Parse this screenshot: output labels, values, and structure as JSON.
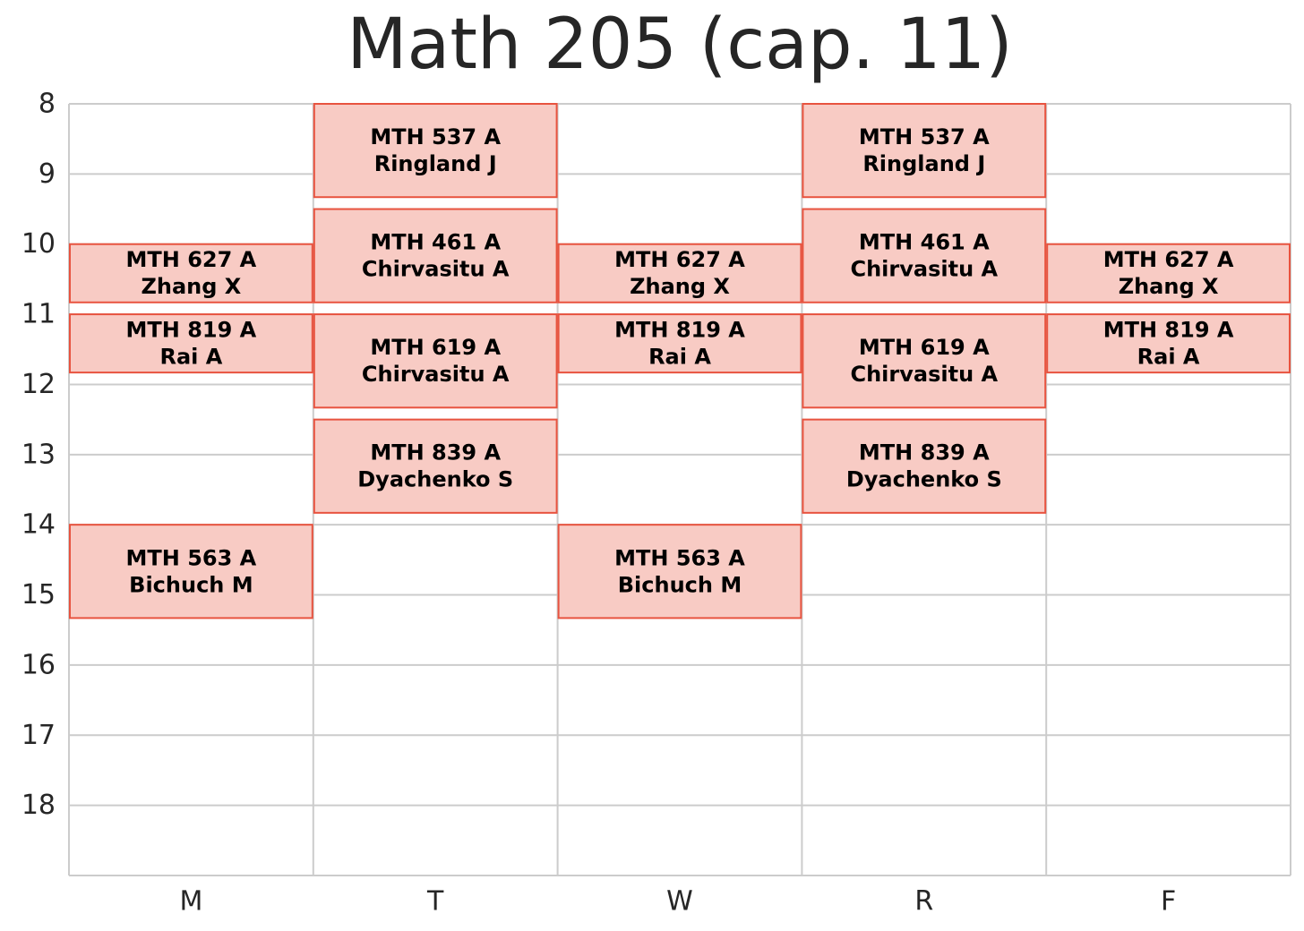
{
  "chart_data": {
    "type": "schedule",
    "title": "Math 205 (cap. 11)",
    "days": [
      "M",
      "T",
      "W",
      "R",
      "F"
    ],
    "hour_ticks": [
      "8",
      "9",
      "10",
      "11",
      "12",
      "13",
      "14",
      "15",
      "16",
      "17",
      "18"
    ],
    "ylim": [
      8,
      19
    ],
    "grid": true,
    "colors": {
      "block_fill": "#f8cbc4",
      "block_stroke": "#e8533f",
      "grid": "#cccccc"
    },
    "events": [
      {
        "day": "T",
        "start": 8.0,
        "end": 9.33,
        "course": "MTH 537 A",
        "instructor": "Ringland J"
      },
      {
        "day": "R",
        "start": 8.0,
        "end": 9.33,
        "course": "MTH 537 A",
        "instructor": "Ringland J"
      },
      {
        "day": "T",
        "start": 9.5,
        "end": 10.83,
        "course": "MTH 461 A",
        "instructor": "Chirvasitu A"
      },
      {
        "day": "R",
        "start": 9.5,
        "end": 10.83,
        "course": "MTH 461 A",
        "instructor": "Chirvasitu A"
      },
      {
        "day": "T",
        "start": 11.0,
        "end": 12.33,
        "course": "MTH 619 A",
        "instructor": "Chirvasitu A"
      },
      {
        "day": "R",
        "start": 11.0,
        "end": 12.33,
        "course": "MTH 619 A",
        "instructor": "Chirvasitu A"
      },
      {
        "day": "T",
        "start": 12.5,
        "end": 13.83,
        "course": "MTH 839 A",
        "instructor": "Dyachenko S"
      },
      {
        "day": "R",
        "start": 12.5,
        "end": 13.83,
        "course": "MTH 839 A",
        "instructor": "Dyachenko S"
      },
      {
        "day": "M",
        "start": 10.0,
        "end": 10.83,
        "course": "MTH 627 A",
        "instructor": "Zhang X"
      },
      {
        "day": "W",
        "start": 10.0,
        "end": 10.83,
        "course": "MTH 627 A",
        "instructor": "Zhang X"
      },
      {
        "day": "F",
        "start": 10.0,
        "end": 10.83,
        "course": "MTH 627 A",
        "instructor": "Zhang X"
      },
      {
        "day": "M",
        "start": 11.0,
        "end": 11.83,
        "course": "MTH 819 A",
        "instructor": "Rai A"
      },
      {
        "day": "W",
        "start": 11.0,
        "end": 11.83,
        "course": "MTH 819 A",
        "instructor": "Rai A"
      },
      {
        "day": "F",
        "start": 11.0,
        "end": 11.83,
        "course": "MTH 819 A",
        "instructor": "Rai A"
      },
      {
        "day": "M",
        "start": 14.0,
        "end": 15.33,
        "course": "MTH 563 A",
        "instructor": "Bichuch M"
      },
      {
        "day": "W",
        "start": 14.0,
        "end": 15.33,
        "course": "MTH 563 A",
        "instructor": "Bichuch M"
      }
    ]
  }
}
